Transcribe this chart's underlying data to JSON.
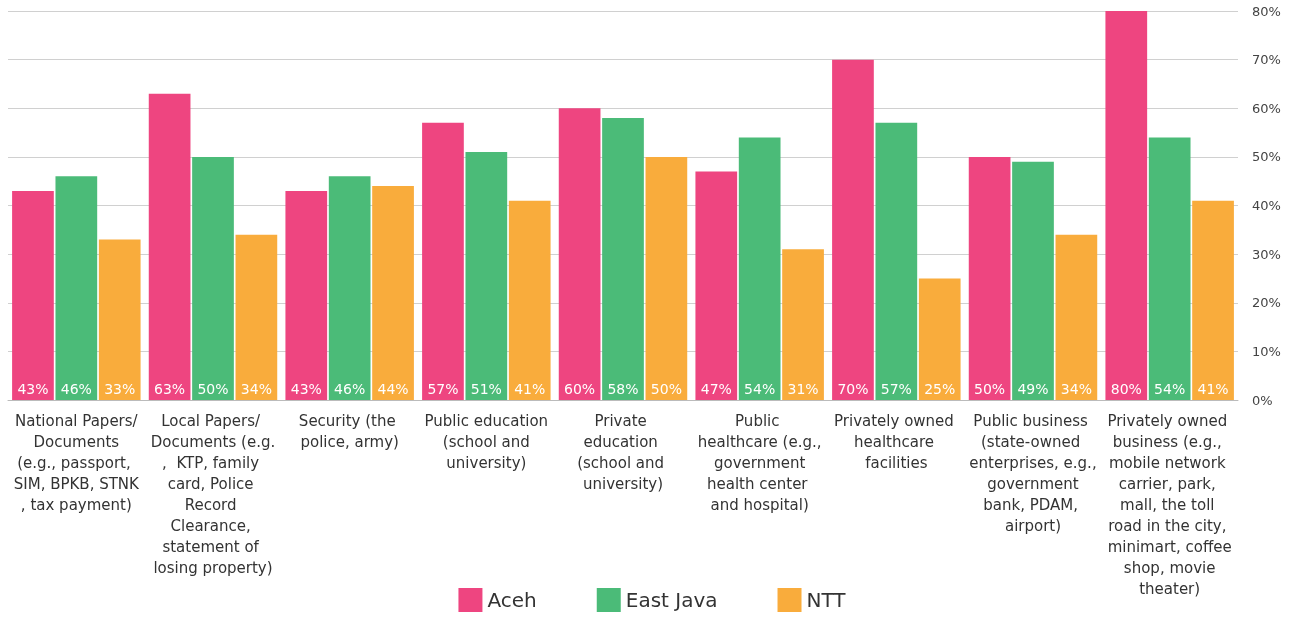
{
  "chart_data": {
    "type": "bar",
    "categories": [
      "National Papers/ Documents (e.g., passport, SIM, BPKB, STNK, tax payment)",
      "Local Papers/ Documents (e.g.,  KTP, family card, Police Record Clearance, statement of losing property)",
      "Security (the police, army)",
      "Public education (school and university)",
      "Private education (school and university)",
      "Public healthcare (e.g., government health center and hospital)",
      "Privately owned healthcare facilities",
      "Public business (state-owned enterprises, e.g., government bank, PDAM, airport)",
      "Privately owned business (e.g., mobile network carrier, park, mall, the toll road in the city, minimart, coffee shop, movie theater)"
    ],
    "series": [
      {
        "name": "Aceh",
        "color": "#ee4580",
        "values": [
          43,
          63,
          43,
          57,
          60,
          47,
          70,
          50,
          80
        ],
        "value_labels": [
          "43%",
          "63%",
          "43%",
          "57%",
          "60%",
          "47%",
          "70%",
          "50%",
          "80%"
        ]
      },
      {
        "name": "East Java",
        "color": "#4bbb78",
        "values": [
          46,
          50,
          46,
          51,
          58,
          54,
          57,
          49,
          54
        ],
        "value_labels": [
          "46%",
          "50%",
          "46%",
          "51%",
          "58%",
          "54%",
          "57%",
          "49%",
          "54%"
        ]
      },
      {
        "name": "NTT",
        "color": "#f9ac3c",
        "values": [
          33,
          34,
          44,
          41,
          50,
          31,
          25,
          34,
          41
        ],
        "value_labels": [
          "33%",
          "34%",
          "44%",
          "41%",
          "50%",
          "31%",
          "25%",
          "34%",
          "41%"
        ]
      }
    ],
    "ylim": [
      0,
      80
    ],
    "yticks": [
      {
        "value": 0,
        "label": "0%"
      },
      {
        "value": 10,
        "label": "10%"
      },
      {
        "value": 20,
        "label": "20%"
      },
      {
        "value": 30,
        "label": "30%"
      },
      {
        "value": 40,
        "label": "40%"
      },
      {
        "value": 50,
        "label": "50%"
      },
      {
        "value": 60,
        "label": "60%"
      },
      {
        "value": 70,
        "label": "70%"
      },
      {
        "value": 80,
        "label": "80%"
      }
    ],
    "grid": "y",
    "legend": "bottom"
  }
}
